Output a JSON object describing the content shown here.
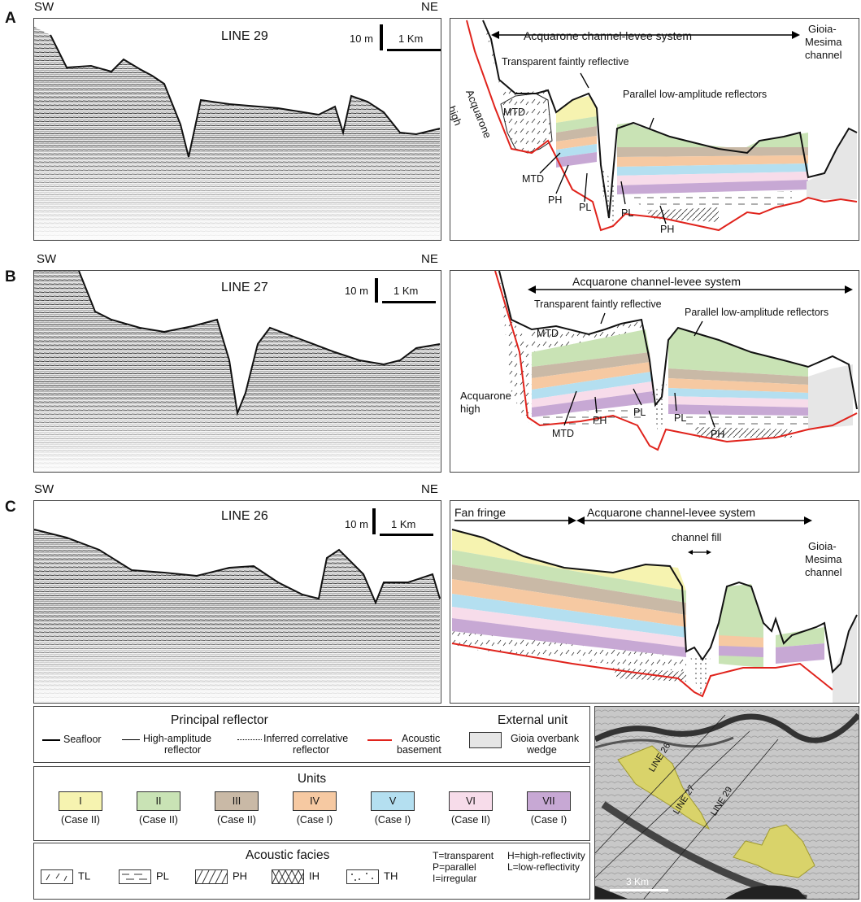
{
  "panels": [
    {
      "letter": "A",
      "dir_left": "SW",
      "dir_right": "NE",
      "line_name": "LINE 29",
      "scale_vertical": "10 m",
      "scale_horizontal": "1 Km",
      "interp": {
        "system_label": "Acquarone channel-levee system",
        "right_label_1": "Gioia-",
        "right_label_2": "Mesima",
        "right_label_3": "channel",
        "high_label_1": "Acquarone",
        "high_label_2": "high",
        "transparent_label": "Transparent faintly reflective",
        "parallel_label": "Parallel low-amplitude reflectors",
        "mtd1": "MTD",
        "mtd2": "MTD",
        "ph1": "PH",
        "pl1": "PL",
        "pl2": "PL",
        "ph2": "PH"
      }
    },
    {
      "letter": "B",
      "dir_left": "SW",
      "dir_right": "NE",
      "line_name": "LINE 27",
      "scale_vertical": "10 m",
      "scale_horizontal": "1 Km",
      "interp": {
        "system_label": "Acquarone channel-levee system",
        "transparent_label": "Transparent faintly reflective",
        "parallel_label": "Parallel low-amplitude reflectors",
        "mtd1": "MTD",
        "high_label_1": "Acquarone",
        "high_label_2": "high",
        "mtd2": "MTD",
        "ph1": "PH",
        "pl1": "PL",
        "pl2": "PL",
        "ph2": "PH"
      }
    },
    {
      "letter": "C",
      "dir_left": "SW",
      "dir_right": "NE",
      "line_name": "LINE 26",
      "scale_vertical": "10 m",
      "scale_horizontal": "1 Km",
      "interp": {
        "fan_label": "Fan fringe",
        "system_label": "Acquarone channel-levee system",
        "channel_fill": "channel fill",
        "right_label_1": "Gioia-",
        "right_label_2": "Mesima",
        "right_label_3": "channel"
      }
    }
  ],
  "legend": {
    "principal_title": "Principal reflector",
    "external_title": "External unit",
    "seafloor": "Seafloor",
    "high_amp_1": "High-amplitude",
    "high_amp_2": "reflector",
    "inferred_1": "Inferred correlative",
    "inferred_2": "reflector",
    "basement_1": "Acoustic",
    "basement_2": "basement",
    "wedge_1": "Gioia overbank",
    "wedge_2": "wedge",
    "units_title": "Units",
    "units": [
      {
        "name": "I",
        "case": "(Case II)",
        "color": "#f6f3b0"
      },
      {
        "name": "II",
        "case": "(Case II)",
        "color": "#c9e3b5"
      },
      {
        "name": "III",
        "case": "(Case II)",
        "color": "#c9b9a6"
      },
      {
        "name": "IV",
        "case": "(Case I)",
        "color": "#f6c9a2"
      },
      {
        "name": "V",
        "case": "(Case I)",
        "color": "#b4dff0"
      },
      {
        "name": "VI",
        "case": "(Case II)",
        "color": "#f7dcea"
      },
      {
        "name": "VII",
        "case": "(Case I)",
        "color": "#c7a8d4"
      }
    ],
    "facies_title": "Acoustic facies",
    "facies": [
      {
        "code": "TL"
      },
      {
        "code": "PL"
      },
      {
        "code": "PH"
      },
      {
        "code": "IH"
      },
      {
        "code": "TH"
      }
    ],
    "key_left": [
      "T=transparent",
      "P=parallel",
      "I=irregular"
    ],
    "key_right": [
      "H=high-reflectivity",
      "L=low-reflectivity"
    ]
  },
  "map": {
    "line_labels": [
      "LINE 26",
      "LINE 27",
      "LINE 29"
    ],
    "scale_label": "3 Km"
  },
  "colors": {
    "basement": "#e0231c",
    "wedge": "#e6e6e6",
    "map_fan": "#d9d36a"
  }
}
